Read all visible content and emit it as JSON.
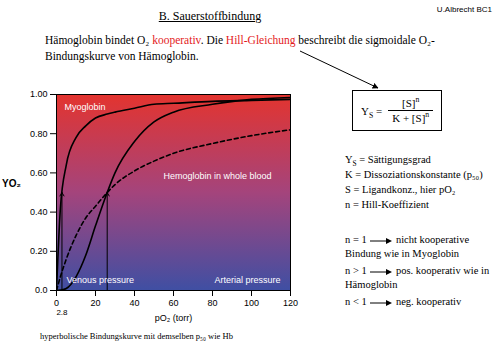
{
  "header": {
    "author": "U.Albrecht BC1",
    "title": "B. Sauerstoffbindung"
  },
  "intro": [
    {
      "t": "Hämoglobin bindet O₂ "
    },
    {
      "t": "kooperativ",
      "color": "#e41a1c"
    },
    {
      "t": ". Die "
    },
    {
      "t": "Hill-Gleichung",
      "color": "#e41a1c"
    },
    {
      "t": " beschreibt die sigmoidale O₂-Bindungskurve von Hämoglobin."
    }
  ],
  "formula": {
    "lhs": "Y",
    "lhs_sub": "S",
    "numerator": "[S]",
    "denominator": "K + [S]",
    "exponent": "n"
  },
  "definitions": [
    [
      {
        "t": "Y"
      },
      {
        "sub": "S"
      },
      {
        "t": " = Sättigungsgrad"
      }
    ],
    [
      {
        "t": "K = Dissoziationskonstante (p₅₀)"
      }
    ],
    [
      {
        "t": "S = Ligandkonz., hier pO₂"
      }
    ],
    [
      {
        "t": "n = Hill-Koeffizient"
      }
    ]
  ],
  "cases": [
    {
      "condition": "n = 1",
      "text": "nicht kooperative Bindung wie in Myoglobin"
    },
    {
      "condition": "n > 1",
      "text": "pos. kooperativ wie in Hämoglobin"
    },
    {
      "condition": "n < 1",
      "text": "neg. kooperativ"
    }
  ],
  "chart_data": {
    "type": "line",
    "x_label": "pO₂ (torr)",
    "y_label": "YO₂",
    "x": [
      0,
      2,
      5,
      10,
      15,
      20,
      26,
      30,
      40,
      50,
      60,
      80,
      100,
      120
    ],
    "series": [
      {
        "name": "Myoglobin",
        "color": "#000000",
        "line_style": "solid",
        "values": [
          0,
          0.42,
          0.64,
          0.78,
          0.84,
          0.88,
          0.9,
          0.91,
          0.93,
          0.95,
          0.955,
          0.965,
          0.97,
          0.975
        ]
      },
      {
        "name": "Hemoglobin in whole blood",
        "color": "#000000",
        "line_style": "solid",
        "values": [
          0,
          0.002,
          0.01,
          0.07,
          0.18,
          0.33,
          0.5,
          0.6,
          0.76,
          0.86,
          0.91,
          0.95,
          0.975,
          0.985
        ]
      },
      {
        "name": "hyperbolische Bindungskurve mit demselben p₅₀ wie Hb",
        "color": "#000000",
        "line_style": "dashed",
        "values": [
          0,
          0.07,
          0.16,
          0.28,
          0.37,
          0.43,
          0.5,
          0.54,
          0.61,
          0.66,
          0.7,
          0.75,
          0.79,
          0.82
        ]
      }
    ],
    "xlim": [
      0,
      120
    ],
    "xticks": [
      0,
      20,
      40,
      60,
      80,
      100,
      120
    ],
    "ylim": [
      0,
      1
    ],
    "yticks": [
      {
        "value": 0,
        "label": "0.0"
      },
      {
        "value": 0.2,
        "label": "0.20"
      },
      {
        "value": 0.4,
        "label": "0.40"
      },
      {
        "value": 0.6,
        "label": "0.60"
      },
      {
        "value": 0.8,
        "label": "0.80"
      },
      {
        "value": 1,
        "label": "1.00"
      }
    ],
    "annotations": [
      "Venous pressure",
      "Arterial pressure"
    ],
    "p50_level": 0.5,
    "p50_markers": [
      {
        "value": 2.8,
        "label": "2.8"
      },
      {
        "value": 26
      }
    ]
  }
}
